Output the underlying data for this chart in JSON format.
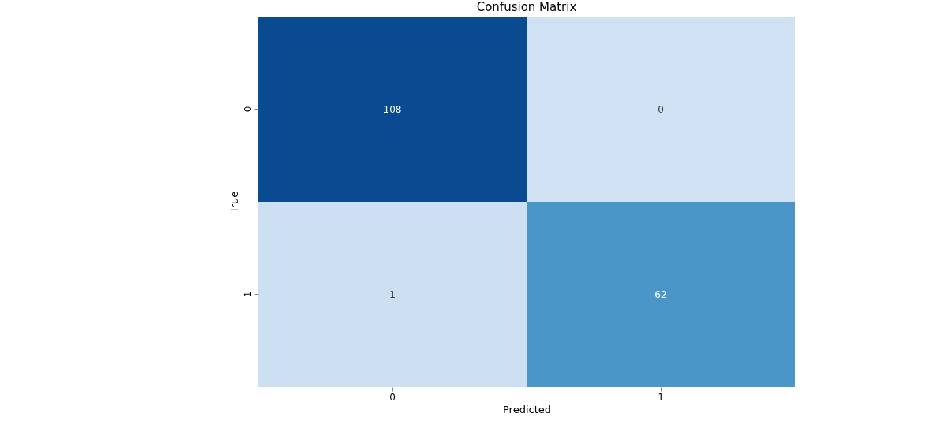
{
  "chart_data": {
    "type": "heatmap",
    "title": "Confusion Matrix",
    "xlabel": "Predicted",
    "ylabel": "True",
    "categories": [
      "0",
      "1"
    ],
    "y_categories": [
      "0",
      "1"
    ],
    "cells": [
      [
        108,
        0
      ],
      [
        1,
        62
      ]
    ],
    "data_labels": true
  }
}
